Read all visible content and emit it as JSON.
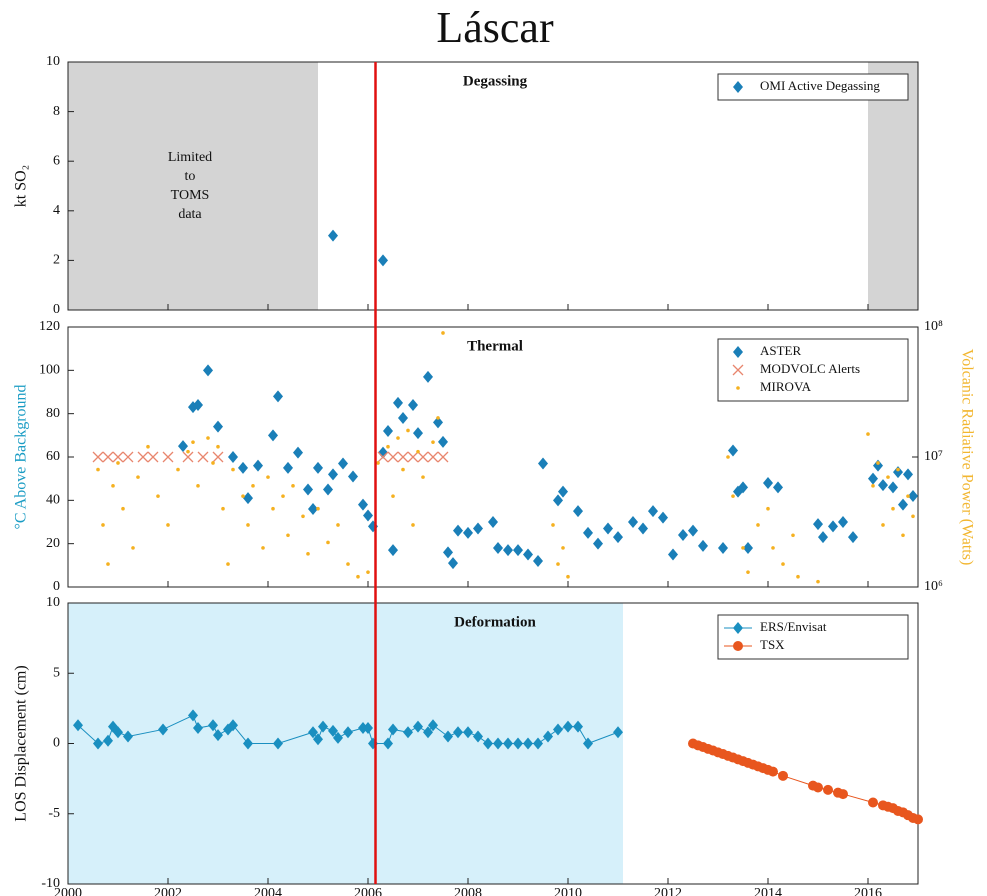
{
  "title": "Láscar",
  "x_axis": {
    "xlim": [
      2000,
      2017
    ],
    "xticks": [
      2000,
      2002,
      2004,
      2006,
      2008,
      2010,
      2012,
      2014,
      2016
    ]
  },
  "event_line": {
    "x": 2006.15,
    "color": "#e01010"
  },
  "chart_data": [
    {
      "type": "scatter",
      "panel_title": "Degassing",
      "ylabel": "kt SO₂",
      "ylim": [
        0,
        10
      ],
      "yticks": [
        0,
        2,
        4,
        6,
        8,
        10
      ],
      "legend": "upper right",
      "shaded": [
        {
          "x": [
            2000,
            2005
          ],
          "color": "#d4d4d4"
        },
        {
          "x": [
            2016,
            2017
          ],
          "color": "#d4d4d4"
        }
      ],
      "annotation": [
        "Limited",
        "to",
        "TOMS",
        "data"
      ],
      "series": [
        {
          "name": "OMI Active Degassing",
          "color": "#1a7fb8",
          "marker": "diamond",
          "x": [
            2005.3,
            2006.3
          ],
          "values": [
            3,
            2
          ]
        }
      ]
    },
    {
      "type": "scatter",
      "panel_title": "Thermal",
      "ylabel": "°C Above Background",
      "ylabel_color": "#1a9cc4",
      "y2label": "Volcanic Radiative Power (Watts)",
      "y2label_color": "#f2b630",
      "ylim": [
        0,
        120
      ],
      "yticks": [
        0,
        20,
        40,
        60,
        80,
        100,
        120
      ],
      "y2lim": [
        1000000,
        100000000
      ],
      "y2log": true,
      "y2ticks": [
        {
          "value": 1000000,
          "label": "10⁶"
        },
        {
          "value": 10000000,
          "label": "10⁷"
        },
        {
          "value": 100000000,
          "label": "10⁸"
        }
      ],
      "legend": "upper right",
      "series": [
        {
          "name": "ASTER",
          "color": "#1a7fb8",
          "marker": "diamond",
          "x": [
            2002.3,
            2002.5,
            2002.6,
            2002.8,
            2003.0,
            2003.3,
            2003.5,
            2003.6,
            2003.8,
            2004.1,
            2004.2,
            2004.4,
            2004.6,
            2004.8,
            2004.9,
            2005.0,
            2005.2,
            2005.3,
            2005.5,
            2005.7,
            2005.9,
            2006.0,
            2006.1,
            2006.3,
            2006.4,
            2006.5,
            2006.6,
            2006.7,
            2006.9,
            2007.0,
            2007.2,
            2007.4,
            2007.5,
            2007.6,
            2007.7,
            2007.8,
            2008.0,
            2008.2,
            2008.5,
            2008.6,
            2008.8,
            2009.0,
            2009.2,
            2009.4,
            2009.5,
            2009.8,
            2009.9,
            2010.2,
            2010.4,
            2010.6,
            2010.8,
            2011.0,
            2011.3,
            2011.5,
            2011.7,
            2011.9,
            2012.1,
            2012.3,
            2012.5,
            2012.7,
            2013.1,
            2013.3,
            2013.4,
            2013.5,
            2013.6,
            2014.0,
            2014.2,
            2015.0,
            2015.1,
            2015.3,
            2015.5,
            2015.7,
            2016.1,
            2016.2,
            2016.3,
            2016.5,
            2016.6,
            2016.7,
            2016.8,
            2016.9
          ],
          "values": [
            65,
            83,
            84,
            100,
            74,
            60,
            55,
            41,
            56,
            70,
            88,
            55,
            62,
            45,
            36,
            55,
            45,
            52,
            57,
            51,
            38,
            33,
            28,
            62,
            72,
            17,
            85,
            78,
            84,
            71,
            97,
            76,
            67,
            16,
            11,
            26,
            25,
            27,
            30,
            18,
            17,
            17,
            15,
            12,
            57,
            40,
            44,
            35,
            25,
            20,
            27,
            23,
            30,
            27,
            35,
            32,
            15,
            24,
            26,
            19,
            18,
            63,
            44,
            46,
            18,
            48,
            46,
            29,
            23,
            28,
            30,
            23,
            50,
            56,
            47,
            46,
            53,
            38,
            52,
            42
          ]
        },
        {
          "name": "MODVOLC Alerts",
          "color": "#e8866e",
          "marker": "x",
          "x": [
            2000.6,
            2000.8,
            2001.0,
            2001.2,
            2001.5,
            2001.7,
            2002.0,
            2002.4,
            2002.7,
            2003.0,
            2006.3,
            2006.5,
            2006.7,
            2006.9,
            2007.1,
            2007.3,
            2007.5
          ],
          "values": [
            60,
            60,
            60,
            60,
            60,
            60,
            60,
            60,
            60,
            60,
            60,
            60,
            60,
            60,
            60,
            60,
            60
          ]
        },
        {
          "name": "MIROVA",
          "color": "#f5b120",
          "marker": "dot",
          "axis": "y2",
          "x": [
            2000.6,
            2000.7,
            2000.8,
            2000.9,
            2001.0,
            2001.1,
            2001.3,
            2001.4,
            2001.6,
            2001.8,
            2002.0,
            2002.2,
            2002.4,
            2002.5,
            2002.6,
            2002.8,
            2002.9,
            2003.0,
            2003.1,
            2003.2,
            2003.3,
            2003.5,
            2003.6,
            2003.7,
            2003.9,
            2004.0,
            2004.1,
            2004.3,
            2004.4,
            2004.5,
            2004.7,
            2004.8,
            2005.0,
            2005.2,
            2005.4,
            2005.6,
            2005.8,
            2006.0,
            2006.2,
            2006.4,
            2006.5,
            2006.6,
            2006.7,
            2006.8,
            2006.9,
            2007.0,
            2007.1,
            2007.3,
            2007.4,
            2007.5,
            2009.7,
            2009.8,
            2009.9,
            2010.0,
            2013.2,
            2013.3,
            2013.5,
            2013.6,
            2013.8,
            2014.0,
            2014.1,
            2014.3,
            2014.5,
            2014.6,
            2015.0,
            2016.0,
            2016.1,
            2016.2,
            2016.3,
            2016.4,
            2016.5,
            2016.6,
            2016.7,
            2016.8,
            2016.9
          ],
          "values": [
            8000000.0,
            3000000.0,
            1500000.0,
            6000000.0,
            9000000.0,
            4000000.0,
            2000000.0,
            7000000.0,
            12000000.0,
            5000000.0,
            3000000.0,
            8000000.0,
            11000000.0,
            13000000.0,
            6000000.0,
            14000000.0,
            9000000.0,
            12000000.0,
            4000000.0,
            1500000.0,
            8000000.0,
            5000000.0,
            3000000.0,
            6000000.0,
            2000000.0,
            7000000.0,
            4000000.0,
            5000000.0,
            2500000.0,
            6000000.0,
            3500000.0,
            1800000.0,
            4000000.0,
            2200000.0,
            3000000.0,
            1500000.0,
            1200000.0,
            1300000.0,
            9000000.0,
            12000000.0,
            5000000.0,
            14000000.0,
            8000000.0,
            16000000.0,
            3000000.0,
            11000000.0,
            7000000.0,
            13000000.0,
            20000000.0,
            90000000.0,
            3000000.0,
            1500000.0,
            2000000.0,
            1200000.0,
            10000000.0,
            5000000.0,
            2000000.0,
            1300000.0,
            3000000.0,
            4000000.0,
            2000000.0,
            1500000.0,
            2500000.0,
            1200000.0,
            1100000.0,
            15000000.0,
            6000000.0,
            9000000.0,
            3000000.0,
            7000000.0,
            4000000.0,
            8000000.0,
            2500000.0,
            5000000.0,
            3500000.0
          ]
        }
      ]
    },
    {
      "type": "line",
      "panel_title": "Deformation",
      "ylabel": "LOS Displacement (cm)",
      "ylim": [
        -10,
        10
      ],
      "yticks": [
        -10,
        -5,
        0,
        5,
        10
      ],
      "legend": "upper right",
      "shaded": [
        {
          "x": [
            2000,
            2011.1
          ],
          "color": "#d6f0fa"
        }
      ],
      "series": [
        {
          "name": "ERS/Envisat",
          "color": "#1a8fc0",
          "marker": "diamond",
          "x": [
            2000.2,
            2000.6,
            2000.8,
            2000.9,
            2001.0,
            2001.2,
            2001.9,
            2002.5,
            2002.6,
            2002.9,
            2003.0,
            2003.2,
            2003.3,
            2003.6,
            2004.2,
            2004.9,
            2005.0,
            2005.1,
            2005.3,
            2005.4,
            2005.6,
            2005.9,
            2006.0,
            2006.1,
            2006.4,
            2006.5,
            2006.8,
            2007.0,
            2007.2,
            2007.3,
            2007.6,
            2007.8,
            2008.0,
            2008.2,
            2008.4,
            2008.6,
            2008.8,
            2009.0,
            2009.2,
            2009.4,
            2009.6,
            2009.8,
            2010.0,
            2010.2,
            2010.4,
            2011.0
          ],
          "values": [
            1.3,
            0,
            0.2,
            1.2,
            0.8,
            0.5,
            1.0,
            2.0,
            1.1,
            1.3,
            0.6,
            1.0,
            1.3,
            0,
            0,
            0.8,
            0.3,
            1.2,
            0.9,
            0.4,
            0.8,
            1.1,
            1.1,
            0,
            0,
            1.0,
            0.8,
            1.2,
            0.8,
            1.3,
            0.5,
            0.8,
            0.8,
            0.5,
            0,
            0,
            0,
            0,
            0,
            0,
            0.5,
            1.0,
            1.2,
            1.2,
            0,
            0.8
          ]
        },
        {
          "name": "TSX",
          "color": "#e8561e",
          "marker": "circle",
          "x": [
            2012.5,
            2012.6,
            2012.7,
            2012.8,
            2012.9,
            2013.0,
            2013.1,
            2013.2,
            2013.3,
            2013.4,
            2013.5,
            2013.6,
            2013.7,
            2013.8,
            2013.9,
            2014.0,
            2014.1,
            2014.3,
            2014.9,
            2015.0,
            2015.2,
            2015.4,
            2015.5,
            2016.1,
            2016.3,
            2016.4,
            2016.5,
            2016.6,
            2016.7,
            2016.8,
            2016.9,
            2017.0
          ],
          "values": [
            0,
            -0.13,
            -0.25,
            -0.38,
            -0.5,
            -0.63,
            -0.75,
            -0.88,
            -1.0,
            -1.13,
            -1.25,
            -1.38,
            -1.5,
            -1.63,
            -1.75,
            -1.88,
            -2.0,
            -2.3,
            -3.0,
            -3.13,
            -3.3,
            -3.5,
            -3.6,
            -4.2,
            -4.4,
            -4.5,
            -4.6,
            -4.8,
            -4.9,
            -5.1,
            -5.3,
            -5.4
          ]
        }
      ]
    }
  ]
}
